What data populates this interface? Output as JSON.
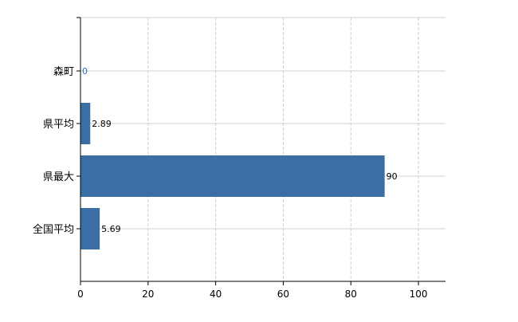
{
  "chart_data": {
    "type": "bar",
    "orientation": "horizontal",
    "categories": [
      "森町",
      "県平均",
      "県最大",
      "全国平均"
    ],
    "values": [
      0,
      2.89,
      90,
      5.69
    ],
    "data_labels": [
      "0",
      "2.89",
      "90",
      "5.69"
    ],
    "title": "",
    "xlabel": "",
    "ylabel": "",
    "xlim": [
      0,
      108
    ],
    "xticks": [
      0,
      20,
      40,
      60,
      80,
      100
    ],
    "xtick_labels": [
      "0",
      "20",
      "40",
      "60",
      "80",
      "100"
    ],
    "grid": true,
    "bar_color": "#3a6ea5",
    "label_color_zero": "#1f6fc0"
  }
}
